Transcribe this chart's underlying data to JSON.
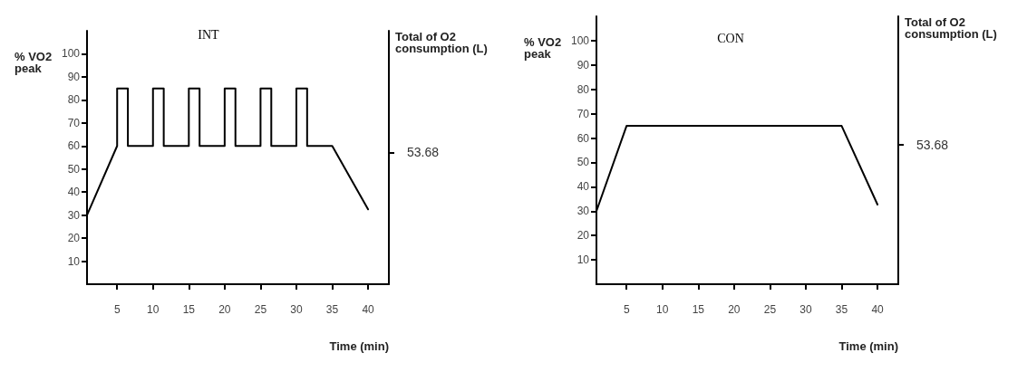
{
  "chart_data": [
    {
      "type": "line",
      "title": "INT",
      "xlabel": "Time (min)",
      "ylabel": "% VO2 peak",
      "y2label": "Total of O2 consumption (L)",
      "series": [
        {
          "color": "#000000",
          "x": [
            0.8,
            5,
            5,
            6.5,
            6.5,
            10,
            10,
            11.5,
            11.5,
            15,
            15,
            16.5,
            16.5,
            20,
            20,
            21.5,
            21.5,
            25,
            25,
            26.5,
            26.5,
            30,
            30,
            31.5,
            31.5,
            35,
            40
          ],
          "values": [
            30,
            60,
            85,
            85,
            60,
            60,
            85,
            85,
            60,
            60,
            85,
            85,
            60,
            60,
            85,
            85,
            60,
            60,
            85,
            85,
            60,
            60,
            85,
            85,
            60,
            60,
            32.5
          ]
        }
      ],
      "xlim": [
        0.8,
        42.9
      ],
      "xticks": [
        5,
        10,
        15,
        20,
        25,
        30,
        35,
        40
      ],
      "ylim": [
        0,
        110
      ],
      "yticks": [
        10,
        20,
        30,
        40,
        50,
        60,
        70,
        80,
        90,
        100
      ],
      "annotations": [
        "53.68"
      ],
      "grid": false,
      "marker": "none",
      "line_style": "solid"
    },
    {
      "type": "line",
      "title": "CON",
      "xlabel": "Time (min)",
      "ylabel": "% VO2 peak",
      "y2label": "Total of O2 consumption (L)",
      "series": [
        {
          "color": "#000000",
          "x": [
            0.8,
            5,
            35,
            40
          ],
          "values": [
            30,
            65,
            65,
            32.7
          ]
        }
      ],
      "xlim": [
        0.8,
        42.9
      ],
      "xticks": [
        5,
        10,
        15,
        20,
        25,
        30,
        35,
        40
      ],
      "ylim": [
        0,
        110
      ],
      "yticks": [
        10,
        20,
        30,
        40,
        50,
        60,
        70,
        80,
        90,
        100
      ],
      "annotations": [
        "53.68"
      ],
      "grid": false,
      "marker": "none",
      "line_style": "solid"
    }
  ]
}
